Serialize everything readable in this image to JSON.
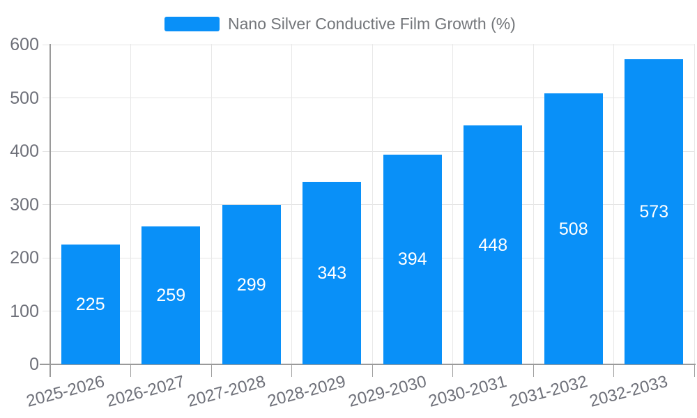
{
  "chart_data": {
    "type": "bar",
    "title": "Nano Silver Conductive Film Growth (%)",
    "legend": {
      "label": "Nano Silver Conductive Film Growth (%)",
      "position": "top"
    },
    "categories": [
      "2025-2026",
      "2026-2027",
      "2027-2028",
      "2028-2029",
      "2029-2030",
      "2030-2031",
      "2031-2032",
      "2032-2033"
    ],
    "values": [
      225,
      259,
      299,
      343,
      394,
      448,
      508,
      573
    ],
    "xlabel": "",
    "ylabel": "",
    "ylim": [
      0,
      600
    ],
    "y_ticks": [
      0,
      100,
      200,
      300,
      400,
      500,
      600
    ],
    "grid": true,
    "colors": {
      "bar": "#0990f8",
      "value_label": "#ffffff",
      "axis_label": "#6e7079",
      "legend_text": "#73767a",
      "grid_line": "#e4e4e4",
      "grid_line_vertical": "#e8e8e8",
      "axis_line": "#9a9a9a",
      "tick": "#a0a0a0"
    }
  }
}
